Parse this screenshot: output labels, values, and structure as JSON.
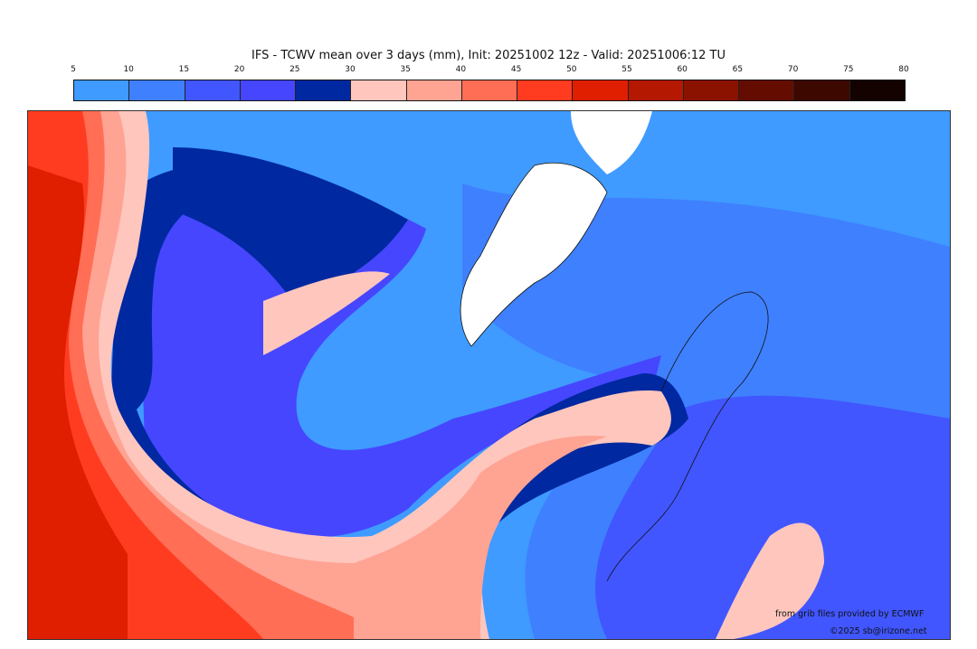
{
  "title": "IFS - TCWV mean over 3 days (mm), Init: 20251002 12z - Valid: 20251006:12 TU",
  "colorbar": {
    "ticks": [
      "5",
      "10",
      "15",
      "20",
      "25",
      "30",
      "35",
      "40",
      "45",
      "50",
      "55",
      "60",
      "65",
      "70",
      "75",
      "80"
    ],
    "colors": [
      "#3f9bff",
      "#3f80ff",
      "#4156ff",
      "#4646ff",
      "#0028a0",
      "#ffc6bd",
      "#ffa393",
      "#ff6e55",
      "#ff3c20",
      "#e01e00",
      "#b41800",
      "#8c1200",
      "#640c00",
      "#3c0800",
      "#140200"
    ]
  },
  "credits": {
    "source": "from grib files provided by ECMWF",
    "copyright": "©2025 sb@irizone.net"
  }
}
